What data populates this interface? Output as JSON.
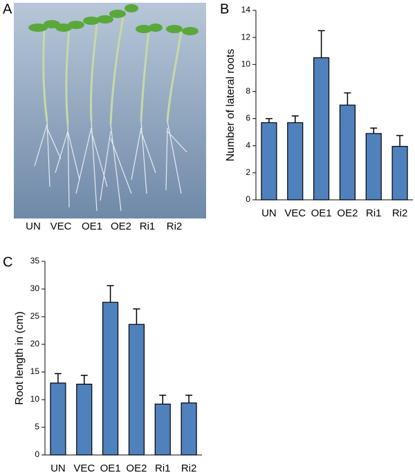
{
  "panel_labels": [
    "A",
    "B",
    "C"
  ],
  "photo": {
    "labels": [
      "UN",
      "VEC",
      "OE1",
      "OE2",
      "Ri1",
      "Ri2"
    ]
  },
  "chart_data": [
    {
      "type": "bar",
      "y_label": "Number of lateral roots",
      "categories": [
        "UN",
        "VEC",
        "OE1",
        "OE2",
        "Ri1",
        "Ri2"
      ],
      "values": [
        5.7,
        5.7,
        10.5,
        7.0,
        4.9,
        3.95
      ],
      "errors": [
        0.3,
        0.5,
        2.0,
        0.9,
        0.4,
        0.8
      ],
      "color": "#4f81bd",
      "ylim": [
        0,
        14
      ],
      "yticks": [
        0,
        2,
        4,
        6,
        8,
        10,
        12,
        14
      ]
    },
    {
      "type": "bar",
      "y_label": "Root length in (cm)",
      "categories": [
        "UN",
        "VEC",
        "OE1",
        "OE2",
        "Ri1",
        "Ri2"
      ],
      "values": [
        13.0,
        12.8,
        27.6,
        23.6,
        9.2,
        9.4
      ],
      "errors": [
        1.7,
        1.6,
        3.0,
        2.8,
        1.6,
        1.4
      ],
      "color": "#4f81bd",
      "ylim": [
        0,
        35
      ],
      "yticks": [
        0,
        5,
        10,
        15,
        20,
        25,
        30,
        35
      ]
    }
  ]
}
